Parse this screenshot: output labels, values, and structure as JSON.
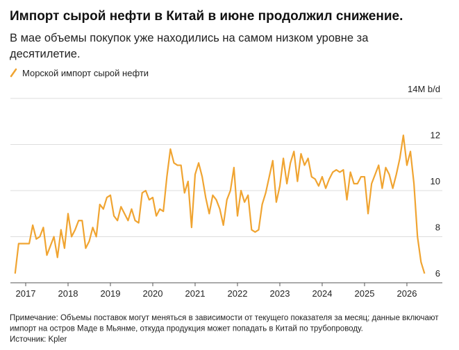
{
  "chart_data": {
    "type": "line",
    "title": "Импорт сырой нефти в Китай в июне продолжил снижение.",
    "subtitle": "В мае объемы покупок уже находились на самом низком уровне за десятилетие.",
    "note": "Примечание: Объемы поставок могут меняться в зависимости от текущего показателя за месяц; данные включают импорт на остров Маде в Мьянме, откуда продукция может попадать в Китай по трубопроводу.",
    "source": "Источник: Kpler",
    "categories": [
      null,
      null,
      null,
      "2017",
      null,
      null,
      null,
      null,
      null,
      null,
      null,
      null,
      null,
      null,
      null,
      "2018",
      null,
      null,
      null,
      null,
      null,
      null,
      null,
      null,
      null,
      null,
      null,
      "2019",
      null,
      null,
      null,
      null,
      null,
      null,
      null,
      null,
      null,
      null,
      null,
      "2020",
      null,
      null,
      null,
      null,
      null,
      null,
      null,
      null,
      null,
      null,
      null,
      "2021",
      null,
      null,
      null,
      null,
      null,
      null,
      null,
      null,
      null,
      null,
      null,
      "2022",
      null,
      null,
      null,
      null,
      null,
      null,
      null,
      null,
      null,
      null,
      null,
      "2023",
      null,
      null,
      null,
      null,
      null,
      null,
      null,
      null,
      null,
      null,
      null,
      "2024",
      null,
      null,
      null,
      null,
      null,
      null,
      null,
      null,
      null,
      null,
      null,
      "2025",
      null,
      null,
      null,
      null,
      null,
      null,
      null,
      null,
      null,
      null,
      null,
      "2026",
      null,
      null,
      null,
      null,
      null
    ],
    "series": [
      {
        "name": "Морской импорт сырой нефти",
        "color": "#f0a431",
        "values": [
          6.4,
          7.7,
          7.7,
          7.7,
          7.7,
          8.5,
          7.9,
          8.0,
          8.4,
          7.2,
          7.6,
          8.0,
          7.1,
          8.3,
          7.5,
          9.0,
          8.0,
          8.3,
          8.7,
          8.7,
          7.5,
          7.8,
          8.4,
          8.0,
          9.4,
          9.2,
          9.7,
          9.8,
          8.9,
          8.7,
          9.3,
          9.0,
          8.7,
          9.2,
          8.7,
          8.6,
          9.9,
          10.0,
          9.6,
          9.7,
          8.9,
          9.2,
          9.1,
          10.6,
          11.8,
          11.2,
          11.1,
          11.1,
          9.9,
          10.4,
          8.4,
          10.7,
          11.2,
          10.6,
          9.7,
          9.0,
          9.8,
          9.6,
          9.2,
          8.5,
          9.6,
          10.0,
          11.0,
          8.9,
          10.0,
          9.5,
          9.8,
          8.3,
          8.2,
          8.3,
          9.4,
          9.9,
          10.6,
          11.3,
          9.5,
          10.2,
          11.4,
          10.3,
          11.2,
          11.7,
          10.4,
          11.6,
          11.1,
          11.4,
          10.6,
          10.5,
          10.2,
          10.6,
          10.1,
          10.5,
          10.8,
          10.9,
          10.8,
          10.9,
          9.6,
          10.8,
          10.3,
          10.3,
          10.6,
          10.6,
          9.0,
          10.3,
          10.7,
          11.1,
          10.1,
          11.0,
          10.7,
          10.1,
          10.7,
          11.4,
          12.4,
          11.1,
          11.7,
          10.3,
          8.0,
          6.9,
          6.4
        ]
      }
    ],
    "ylim": [
      6,
      14
    ],
    "yticks": [
      6,
      8,
      10,
      12,
      {
        "value": 14,
        "label": "14M b/d"
      }
    ],
    "grid": true
  }
}
